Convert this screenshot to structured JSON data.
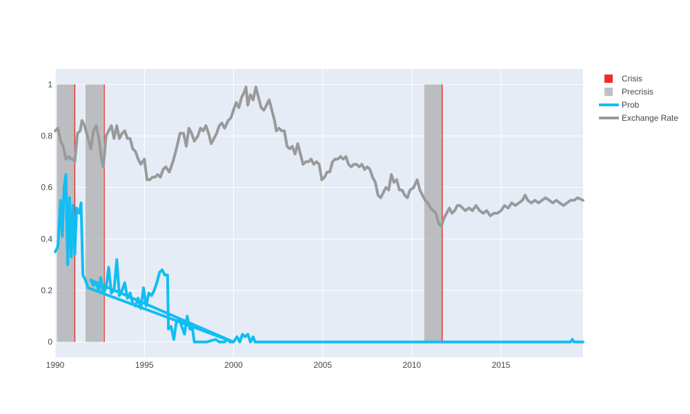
{
  "chart_data": {
    "type": "line",
    "title": "",
    "xlabel": "",
    "ylabel": "",
    "xlim": [
      1990,
      2019.6
    ],
    "ylim": [
      -0.06,
      1.06
    ],
    "x_ticks": [
      1990,
      1995,
      2000,
      2005,
      2010,
      2015
    ],
    "x_tick_labels": [
      "1990",
      "1995",
      "2000",
      "2005",
      "2010",
      "2015"
    ],
    "y_ticks": [
      0,
      0.2,
      0.4,
      0.6,
      0.8,
      1
    ],
    "y_tick_labels": [
      "0",
      "0.2",
      "0.4",
      "0.6",
      "0.8",
      "1"
    ],
    "grid": true,
    "legend_position": "top-right",
    "precrisis_periods": [
      [
        1990.1,
        1991.1
      ],
      [
        1991.7,
        1992.7
      ],
      [
        2010.7,
        2011.7
      ]
    ],
    "crisis_dates": [
      1991.1,
      1992.75,
      2011.7
    ],
    "legend": [
      {
        "name": "Crisis",
        "kind": "box",
        "color": "#ef2c2c"
      },
      {
        "name": "Precrisis",
        "kind": "box",
        "color": "#c0c0c0"
      },
      {
        "name": "Prob",
        "kind": "line",
        "color": "#12bdf2"
      },
      {
        "name": "Exchange Rate",
        "kind": "line",
        "color": "#9a9a9a"
      }
    ],
    "series": [
      {
        "name": "Exchange Rate",
        "color": "#9a9a9a",
        "points": [
          [
            1990.0,
            0.82
          ],
          [
            1990.15,
            0.83
          ],
          [
            1990.3,
            0.78
          ],
          [
            1990.45,
            0.76
          ],
          [
            1990.6,
            0.71
          ],
          [
            1990.75,
            0.72
          ],
          [
            1990.9,
            0.71
          ],
          [
            1991.0,
            0.71
          ],
          [
            1991.1,
            0.7
          ],
          [
            1991.25,
            0.81
          ],
          [
            1991.4,
            0.82
          ],
          [
            1991.5,
            0.86
          ],
          [
            1991.65,
            0.84
          ],
          [
            1991.8,
            0.8
          ],
          [
            1992.0,
            0.75
          ],
          [
            1992.15,
            0.82
          ],
          [
            1992.3,
            0.84
          ],
          [
            1992.45,
            0.79
          ],
          [
            1992.6,
            0.71
          ],
          [
            1992.7,
            0.68
          ],
          [
            1992.85,
            0.8
          ],
          [
            1993.0,
            0.82
          ],
          [
            1993.15,
            0.84
          ],
          [
            1993.3,
            0.79
          ],
          [
            1993.45,
            0.84
          ],
          [
            1993.6,
            0.79
          ],
          [
            1993.75,
            0.81
          ],
          [
            1993.9,
            0.82
          ],
          [
            1994.05,
            0.79
          ],
          [
            1994.2,
            0.79
          ],
          [
            1994.35,
            0.75
          ],
          [
            1994.5,
            0.74
          ],
          [
            1994.65,
            0.71
          ],
          [
            1994.8,
            0.69
          ],
          [
            1995.0,
            0.71
          ],
          [
            1995.15,
            0.63
          ],
          [
            1995.3,
            0.63
          ],
          [
            1995.45,
            0.64
          ],
          [
            1995.6,
            0.64
          ],
          [
            1995.75,
            0.65
          ],
          [
            1995.9,
            0.64
          ],
          [
            1996.05,
            0.67
          ],
          [
            1996.2,
            0.68
          ],
          [
            1996.4,
            0.66
          ],
          [
            1996.6,
            0.7
          ],
          [
            1996.8,
            0.75
          ],
          [
            1997.0,
            0.81
          ],
          [
            1997.2,
            0.81
          ],
          [
            1997.35,
            0.76
          ],
          [
            1997.5,
            0.83
          ],
          [
            1997.65,
            0.81
          ],
          [
            1997.8,
            0.78
          ],
          [
            1998.0,
            0.8
          ],
          [
            1998.15,
            0.83
          ],
          [
            1998.3,
            0.82
          ],
          [
            1998.45,
            0.84
          ],
          [
            1998.6,
            0.81
          ],
          [
            1998.75,
            0.77
          ],
          [
            1998.9,
            0.79
          ],
          [
            1999.05,
            0.81
          ],
          [
            1999.2,
            0.84
          ],
          [
            1999.35,
            0.85
          ],
          [
            1999.5,
            0.83
          ],
          [
            1999.7,
            0.86
          ],
          [
            1999.85,
            0.87
          ],
          [
            2000.0,
            0.9
          ],
          [
            2000.15,
            0.93
          ],
          [
            2000.3,
            0.91
          ],
          [
            2000.45,
            0.95
          ],
          [
            2000.6,
            0.97
          ],
          [
            2000.7,
            0.99
          ],
          [
            2000.8,
            0.92
          ],
          [
            2000.95,
            0.96
          ],
          [
            2001.1,
            0.94
          ],
          [
            2001.25,
            0.99
          ],
          [
            2001.4,
            0.95
          ],
          [
            2001.55,
            0.91
          ],
          [
            2001.7,
            0.9
          ],
          [
            2001.85,
            0.92
          ],
          [
            2002.0,
            0.94
          ],
          [
            2002.15,
            0.9
          ],
          [
            2002.3,
            0.86
          ],
          [
            2002.4,
            0.82
          ],
          [
            2002.55,
            0.83
          ],
          [
            2002.7,
            0.82
          ],
          [
            2002.85,
            0.82
          ],
          [
            2003.0,
            0.76
          ],
          [
            2003.15,
            0.75
          ],
          [
            2003.3,
            0.76
          ],
          [
            2003.45,
            0.73
          ],
          [
            2003.6,
            0.77
          ],
          [
            2003.75,
            0.73
          ],
          [
            2003.9,
            0.69
          ],
          [
            2004.05,
            0.7
          ],
          [
            2004.2,
            0.7
          ],
          [
            2004.35,
            0.71
          ],
          [
            2004.5,
            0.69
          ],
          [
            2004.65,
            0.7
          ],
          [
            2004.8,
            0.69
          ],
          [
            2004.95,
            0.63
          ],
          [
            2005.1,
            0.64
          ],
          [
            2005.25,
            0.66
          ],
          [
            2005.4,
            0.66
          ],
          [
            2005.55,
            0.7
          ],
          [
            2005.7,
            0.71
          ],
          [
            2005.85,
            0.71
          ],
          [
            2006.0,
            0.72
          ],
          [
            2006.15,
            0.71
          ],
          [
            2006.3,
            0.72
          ],
          [
            2006.45,
            0.69
          ],
          [
            2006.6,
            0.68
          ],
          [
            2006.75,
            0.69
          ],
          [
            2006.9,
            0.69
          ],
          [
            2007.05,
            0.68
          ],
          [
            2007.2,
            0.69
          ],
          [
            2007.35,
            0.67
          ],
          [
            2007.5,
            0.68
          ],
          [
            2007.65,
            0.67
          ],
          [
            2007.8,
            0.64
          ],
          [
            2007.95,
            0.62
          ],
          [
            2008.1,
            0.57
          ],
          [
            2008.25,
            0.56
          ],
          [
            2008.4,
            0.58
          ],
          [
            2008.55,
            0.6
          ],
          [
            2008.7,
            0.59
          ],
          [
            2008.85,
            0.65
          ],
          [
            2009.0,
            0.62
          ],
          [
            2009.15,
            0.63
          ],
          [
            2009.3,
            0.59
          ],
          [
            2009.45,
            0.59
          ],
          [
            2009.6,
            0.57
          ],
          [
            2009.75,
            0.56
          ],
          [
            2009.9,
            0.59
          ],
          [
            2010.1,
            0.6
          ],
          [
            2010.3,
            0.63
          ],
          [
            2010.45,
            0.59
          ],
          [
            2010.6,
            0.57
          ],
          [
            2010.75,
            0.55
          ],
          [
            2010.9,
            0.54
          ],
          [
            2011.05,
            0.52
          ],
          [
            2011.2,
            0.51
          ],
          [
            2011.35,
            0.5
          ],
          [
            2011.5,
            0.46
          ],
          [
            2011.65,
            0.45
          ],
          [
            2011.8,
            0.48
          ],
          [
            2011.95,
            0.5
          ],
          [
            2012.1,
            0.52
          ],
          [
            2012.25,
            0.5
          ],
          [
            2012.4,
            0.51
          ],
          [
            2012.55,
            0.53
          ],
          [
            2012.7,
            0.53
          ],
          [
            2012.85,
            0.52
          ],
          [
            2013.0,
            0.51
          ],
          [
            2013.2,
            0.52
          ],
          [
            2013.4,
            0.51
          ],
          [
            2013.6,
            0.53
          ],
          [
            2013.8,
            0.51
          ],
          [
            2014.0,
            0.5
          ],
          [
            2014.2,
            0.51
          ],
          [
            2014.4,
            0.49
          ],
          [
            2014.6,
            0.5
          ],
          [
            2014.8,
            0.5
          ],
          [
            2015.0,
            0.51
          ],
          [
            2015.2,
            0.53
          ],
          [
            2015.4,
            0.52
          ],
          [
            2015.6,
            0.54
          ],
          [
            2015.8,
            0.53
          ],
          [
            2016.0,
            0.54
          ],
          [
            2016.2,
            0.55
          ],
          [
            2016.35,
            0.57
          ],
          [
            2016.5,
            0.55
          ],
          [
            2016.7,
            0.54
          ],
          [
            2016.9,
            0.55
          ],
          [
            2017.1,
            0.54
          ],
          [
            2017.3,
            0.55
          ],
          [
            2017.5,
            0.56
          ],
          [
            2017.7,
            0.55
          ],
          [
            2017.9,
            0.54
          ],
          [
            2018.1,
            0.55
          ],
          [
            2018.3,
            0.54
          ],
          [
            2018.5,
            0.53
          ],
          [
            2018.7,
            0.54
          ],
          [
            2018.9,
            0.55
          ],
          [
            2019.1,
            0.55
          ],
          [
            2019.3,
            0.56
          ],
          [
            2019.6,
            0.55
          ]
        ]
      },
      {
        "name": "Prob",
        "color": "#12bdf2",
        "points": [
          [
            1990.0,
            0.35
          ],
          [
            1990.15,
            0.37
          ],
          [
            1990.3,
            0.55
          ],
          [
            1990.4,
            0.41
          ],
          [
            1990.5,
            0.6
          ],
          [
            1990.6,
            0.65
          ],
          [
            1990.7,
            0.3
          ],
          [
            1990.8,
            0.56
          ],
          [
            1990.9,
            0.33
          ],
          [
            1991.0,
            0.53
          ],
          [
            1991.1,
            0.34
          ],
          [
            1991.2,
            0.52
          ],
          [
            1991.35,
            0.5
          ],
          [
            1991.45,
            0.54
          ],
          [
            1991.55,
            0.26
          ],
          [
            1991.7,
            0.24
          ],
          [
            1991.85,
            0.21
          ],
          [
            2000.0,
            0.0
          ],
          [
            1992.0,
            0.24
          ],
          [
            1992.15,
            0.22
          ],
          [
            1992.3,
            0.23
          ],
          [
            1992.45,
            0.2
          ],
          [
            1992.55,
            0.25
          ],
          [
            1992.7,
            0.19
          ],
          [
            1992.85,
            0.21
          ],
          [
            1993.0,
            0.29
          ],
          [
            1993.15,
            0.19
          ],
          [
            1993.3,
            0.2
          ],
          [
            1993.45,
            0.32
          ],
          [
            1993.6,
            0.18
          ],
          [
            1993.75,
            0.2
          ],
          [
            1993.9,
            0.23
          ],
          [
            1994.05,
            0.17
          ],
          [
            1994.2,
            0.19
          ],
          [
            1994.35,
            0.15
          ],
          [
            1994.5,
            0.14
          ],
          [
            1994.65,
            0.17
          ],
          [
            1994.8,
            0.13
          ],
          [
            1994.95,
            0.21
          ],
          [
            1995.1,
            0.14
          ],
          [
            1995.25,
            0.19
          ],
          [
            1995.4,
            0.18
          ],
          [
            1995.55,
            0.2
          ],
          [
            1995.7,
            0.23
          ],
          [
            1995.85,
            0.27
          ],
          [
            1996.0,
            0.28
          ],
          [
            1996.15,
            0.26
          ],
          [
            1996.3,
            0.26
          ],
          [
            1996.35,
            0.05
          ],
          [
            1996.5,
            0.06
          ],
          [
            1996.65,
            0.01
          ],
          [
            1996.8,
            0.08
          ],
          [
            1996.95,
            0.09
          ],
          [
            1997.1,
            0.06
          ],
          [
            1997.25,
            0.03
          ],
          [
            1997.4,
            0.1
          ],
          [
            1997.55,
            0.05
          ],
          [
            1997.7,
            0.05
          ],
          [
            1997.8,
            0.0
          ],
          [
            1998.0,
            0.0
          ],
          [
            1998.5,
            0.0
          ],
          [
            1999.0,
            0.01
          ],
          [
            1999.2,
            0.0
          ],
          [
            1999.5,
            0.0
          ],
          [
            1999.65,
            0.01
          ],
          [
            1999.8,
            0.0
          ],
          [
            2000.0,
            0.0
          ],
          [
            2000.2,
            0.02
          ],
          [
            2000.35,
            0.0
          ],
          [
            2000.5,
            0.03
          ],
          [
            2000.65,
            0.02
          ],
          [
            2000.8,
            0.03
          ],
          [
            2000.95,
            0.0
          ],
          [
            2001.1,
            0.02
          ],
          [
            2001.2,
            0.0
          ],
          [
            2002.0,
            0.0
          ],
          [
            2003.0,
            0.0
          ],
          [
            2005.0,
            0.0
          ],
          [
            2010.0,
            0.0
          ],
          [
            2015.0,
            0.0
          ],
          [
            2018.9,
            0.0
          ],
          [
            2019.0,
            0.01
          ],
          [
            2019.1,
            0.0
          ],
          [
            2019.6,
            0.0
          ]
        ]
      }
    ]
  }
}
